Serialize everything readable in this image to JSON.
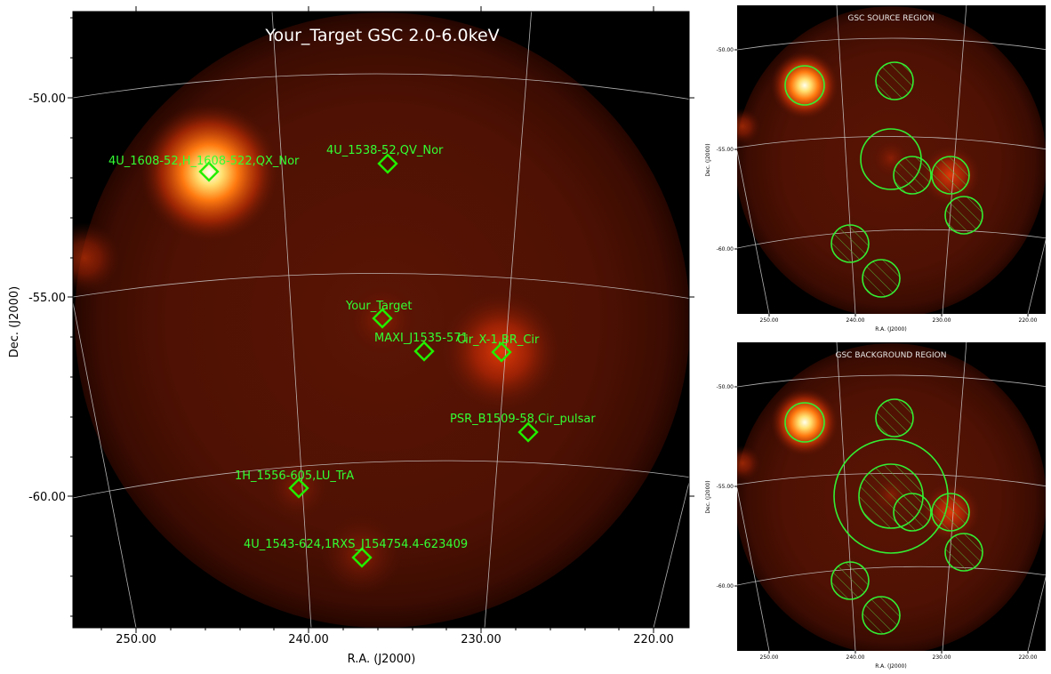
{
  "main_panel": {
    "title": "Your_Target GSC 2.0-6.0keV",
    "xlabel": "R.A. (J2000)",
    "ylabel": "Dec. (J2000)",
    "x_ticks": [
      "250.00",
      "240.00",
      "230.00",
      "220.00"
    ],
    "y_ticks": [
      "-50.00",
      "-55.00",
      "-60.00"
    ],
    "sources": [
      {
        "label": "4U_1608-52,H_1608-522,QX_Nor"
      },
      {
        "label": "4U_1538-52,QV_Nor"
      },
      {
        "label": "Your_Target"
      },
      {
        "label": "MAXI_J1535-571"
      },
      {
        "label": "Cir_X-1,BR_Cir"
      },
      {
        "label": "PSR_B1509-58,Cir_pulsar"
      },
      {
        "label": "1H_1556-605,LU_TrA"
      },
      {
        "label": "4U_1543-624,1RXS_J154754.4-623409"
      }
    ]
  },
  "source_panel": {
    "title": "GSC SOURCE REGION",
    "xlabel": "R.A. (J2000)",
    "ylabel": "Dec. (J2000)",
    "x_ticks": [
      "250.00",
      "240.00",
      "230.00",
      "220.00"
    ],
    "y_ticks": [
      "-50.00",
      "-55.00",
      "-60.00"
    ]
  },
  "background_panel": {
    "title": "GSC BACKGROUND REGION",
    "xlabel": "R.A. (J2000)",
    "ylabel": "Dec. (J2000)",
    "x_ticks": [
      "250.00",
      "240.00",
      "230.00",
      "220.00"
    ],
    "y_ticks": [
      "-50.00",
      "-55.00",
      "-60.00"
    ]
  },
  "colors": {
    "image_bg": "#000000",
    "marker_green": "#22ee00",
    "label_green": "#33ff33",
    "grid": "#d0d0d0"
  }
}
